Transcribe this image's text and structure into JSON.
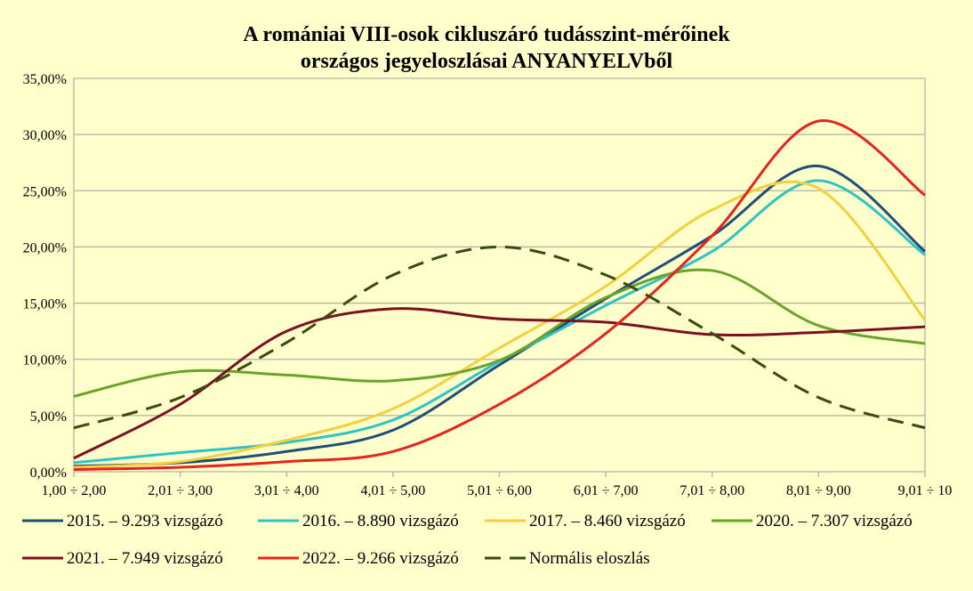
{
  "chart_data": {
    "type": "line",
    "title": [
      "A romániai VIII-osok cikluszáró tudásszint-mérőinek",
      "országos jegyeloszlásai ANYANYELVből"
    ],
    "categories": [
      "1,00 ÷ 2,00",
      "2,01 ÷ 3,00",
      "3,01 ÷ 4,00",
      "4,01 ÷ 5,00",
      "5,01 ÷ 6,00",
      "6,01 ÷ 7,00",
      "7,01 ÷ 8,00",
      "8,01 ÷ 9,00",
      "9,01 ÷ 10"
    ],
    "ylim": [
      0,
      35
    ],
    "yticks": [
      0,
      5,
      10,
      15,
      20,
      25,
      30,
      35
    ],
    "ytick_labels": [
      "0,00%",
      "5,00%",
      "10,00%",
      "15,00%",
      "20,00%",
      "25,00%",
      "30,00%",
      "35,00%"
    ],
    "grid": true,
    "smooth": true,
    "legend_placement": "bottom",
    "series": [
      {
        "name": "2015. – 9.293  vizsgázó",
        "color": "#1f4e79",
        "dashed": false,
        "values": [
          0.5,
          0.8,
          1.8,
          3.7,
          9.5,
          15.4,
          21.0,
          27.2,
          19.6
        ]
      },
      {
        "name": "2016. – 8.890  vizsgázó",
        "color": "#2ec4c4",
        "dashed": false,
        "values": [
          0.8,
          1.7,
          2.6,
          4.6,
          9.8,
          14.8,
          19.6,
          25.9,
          19.3
        ]
      },
      {
        "name": "2017. – 8.460 vizsgázó",
        "color": "#f4d03f",
        "dashed": false,
        "values": [
          0.4,
          0.9,
          2.8,
          5.6,
          11.0,
          16.5,
          23.3,
          25.2,
          13.5
        ]
      },
      {
        "name": "2020. – 7.307  vizsgázó",
        "color": "#6aa329",
        "dashed": false,
        "values": [
          6.7,
          8.9,
          8.6,
          8.1,
          9.9,
          15.5,
          17.9,
          13.0,
          11.4
        ]
      },
      {
        "name": "2021. – 7.949  vizsgázó",
        "color": "#7b1020",
        "dashed": false,
        "values": [
          1.2,
          6.0,
          12.5,
          14.5,
          13.6,
          13.3,
          12.2,
          12.4,
          12.9
        ]
      },
      {
        "name": "2022. – 9.266 vizsgázó",
        "color": "#e8231d",
        "dashed": false,
        "values": [
          0.2,
          0.4,
          0.9,
          1.8,
          6.0,
          12.3,
          21.0,
          31.2,
          24.6
        ]
      },
      {
        "name": "Normális eloszlás",
        "color": "#3a4a10",
        "dashed": true,
        "values": [
          3.9,
          6.6,
          11.5,
          17.5,
          20.0,
          17.5,
          12.3,
          6.6,
          3.9
        ]
      }
    ]
  }
}
